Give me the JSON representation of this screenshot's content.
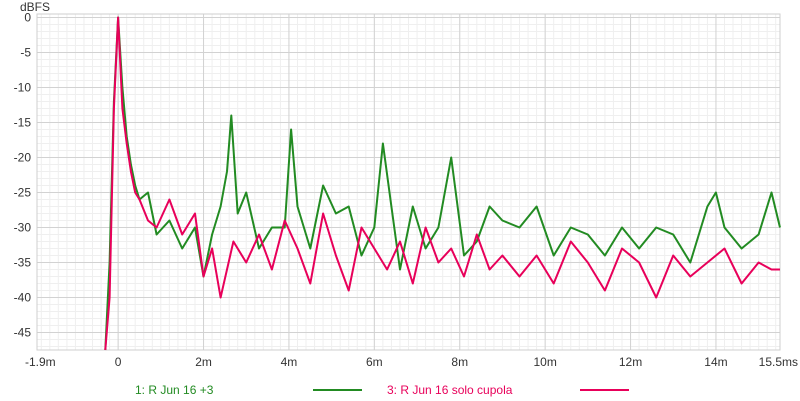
{
  "chart_data": {
    "type": "line",
    "ylabel": "dBFS",
    "xlabel": "",
    "xlim": [
      -1.9,
      15.5
    ],
    "ylim": [
      -47.5,
      0.5
    ],
    "x_ticks": [
      {
        "value": -1.9,
        "label": "-1.9m"
      },
      {
        "value": 0,
        "label": "0"
      },
      {
        "value": 2,
        "label": "2m"
      },
      {
        "value": 4,
        "label": "4m"
      },
      {
        "value": 6,
        "label": "6m"
      },
      {
        "value": 8,
        "label": "8m"
      },
      {
        "value": 10,
        "label": "10m"
      },
      {
        "value": 12,
        "label": "12m"
      },
      {
        "value": 14,
        "label": "14m"
      },
      {
        "value": 15.5,
        "label": "15.5ms"
      }
    ],
    "y_ticks": [
      {
        "value": 0,
        "label": "0"
      },
      {
        "value": -5,
        "label": "-5"
      },
      {
        "value": -10,
        "label": "-10"
      },
      {
        "value": -15,
        "label": "-15"
      },
      {
        "value": -20,
        "label": "-20"
      },
      {
        "value": -25,
        "label": "-25"
      },
      {
        "value": -30,
        "label": "-30"
      },
      {
        "value": -35,
        "label": "-35"
      },
      {
        "value": -40,
        "label": "-40"
      },
      {
        "value": -45,
        "label": "-45"
      }
    ],
    "grid": true,
    "legend_position": "bottom",
    "series": [
      {
        "name": "1: R Jun 16 +3",
        "color": "#228b22",
        "x": [
          -0.3,
          -0.2,
          -0.1,
          0,
          0.1,
          0.2,
          0.3,
          0.4,
          0.5,
          0.7,
          0.9,
          1.2,
          1.5,
          1.8,
          2.0,
          2.2,
          2.4,
          2.55,
          2.65,
          2.8,
          3.0,
          3.3,
          3.6,
          3.9,
          4.05,
          4.2,
          4.5,
          4.8,
          5.1,
          5.4,
          5.7,
          6.0,
          6.2,
          6.4,
          6.6,
          6.9,
          7.2,
          7.5,
          7.8,
          8.1,
          8.4,
          8.7,
          9.0,
          9.4,
          9.8,
          10.2,
          10.6,
          11.0,
          11.4,
          11.8,
          12.2,
          12.6,
          13.0,
          13.4,
          13.8,
          14.0,
          14.2,
          14.6,
          15.0,
          15.3,
          15.5
        ],
        "y": [
          -47.5,
          -35,
          -12,
          0,
          -10,
          -17,
          -21,
          -24,
          -26,
          -25,
          -31,
          -29,
          -33,
          -30,
          -37,
          -31,
          -27,
          -22,
          -14,
          -28,
          -25,
          -33,
          -30,
          -30,
          -16,
          -27,
          -33,
          -24,
          -28,
          -27,
          -34,
          -30,
          -18,
          -27,
          -36,
          -27,
          -33,
          -30,
          -20,
          -34,
          -32,
          -27,
          -29,
          -30,
          -27,
          -34,
          -30,
          -31,
          -34,
          -30,
          -33,
          -30,
          -31,
          -35,
          -27,
          -25,
          -30,
          -33,
          -31,
          -25,
          -30
        ]
      },
      {
        "name": "3: R Jun 16 solo cupola",
        "color": "#e8005a",
        "x": [
          -0.3,
          -0.2,
          -0.1,
          0,
          0.1,
          0.2,
          0.3,
          0.4,
          0.5,
          0.7,
          0.9,
          1.2,
          1.5,
          1.8,
          2.0,
          2.2,
          2.4,
          2.7,
          3.0,
          3.3,
          3.6,
          3.9,
          4.2,
          4.5,
          4.8,
          5.1,
          5.4,
          5.7,
          6.0,
          6.3,
          6.6,
          6.9,
          7.2,
          7.5,
          7.8,
          8.1,
          8.4,
          8.7,
          9.0,
          9.4,
          9.8,
          10.2,
          10.6,
          11.0,
          11.4,
          11.8,
          12.2,
          12.6,
          13.0,
          13.4,
          13.8,
          14.2,
          14.6,
          15.0,
          15.3,
          15.5
        ],
        "y": [
          -47.5,
          -40,
          -13,
          0,
          -13,
          -18,
          -22,
          -25,
          -26,
          -29,
          -30,
          -26,
          -31,
          -28,
          -37,
          -33,
          -40,
          -32,
          -35,
          -31,
          -36,
          -29,
          -33,
          -38,
          -28,
          -34,
          -39,
          -30,
          -33,
          -36,
          -32,
          -38,
          -30,
          -35,
          -33,
          -37,
          -31,
          -36,
          -34,
          -37,
          -34,
          -38,
          -32,
          -35,
          -39,
          -33,
          -35,
          -40,
          -34,
          -37,
          -35,
          -33,
          -38,
          -35,
          -36,
          -36
        ]
      }
    ]
  }
}
